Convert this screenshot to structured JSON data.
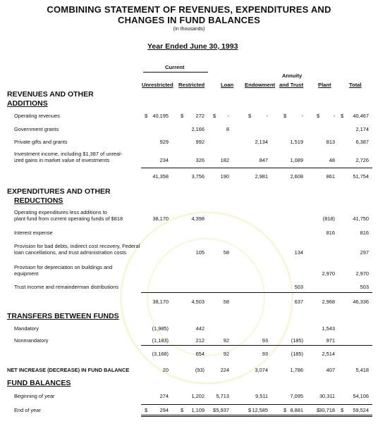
{
  "heading": {
    "title_line1": "COMBINING STATEMENT OF REVENUES, EXPENDITURES AND",
    "title_line2": "CHANGES IN FUND BALANCES",
    "units": "(In thousands)",
    "period": "Year Ended June 30, 1993"
  },
  "columns": {
    "current_group": "Current",
    "annuity_top": "Annuity",
    "unrestricted": "Unrestricted",
    "restricted": "Restricted",
    "loan": "Loan",
    "endowment": "Endowment",
    "annuity_trust": "and Trust",
    "plant": "Plant",
    "total": "Total"
  },
  "currency": "$",
  "sections": {
    "revenues_l1": "REVENUES AND OTHER",
    "revenues_l2": "ADDITIONS",
    "expenditures_l1": "EXPENDITURES AND OTHER",
    "expenditures_l2": "REDUCTIONS",
    "transfers": "TRANSFERS BETWEEN FUNDS",
    "net_increase": "NET INCREASE (DECREASE) IN FUND BALANCE",
    "fund_balances": "FUND BALANCES"
  },
  "rows": [
    {
      "label": [
        "Operating revenues"
      ],
      "values": [
        "40,195",
        "272",
        "-",
        "-",
        "-",
        "-",
        "40,467"
      ],
      "dollar": true
    },
    {
      "label": [
        "Government grants"
      ],
      "values": [
        "",
        "2,166",
        "8",
        "",
        "",
        "",
        "2,174"
      ]
    },
    {
      "label": [
        "Private gifts and grants"
      ],
      "values": [
        "929",
        "992",
        "",
        "2,134",
        "1,519",
        "813",
        "6,387"
      ]
    },
    {
      "label": [
        "Investment income, including $1,387 of unreal-",
        "ized gains in market value of investments"
      ],
      "values": [
        "234",
        "326",
        "182",
        "847",
        "1,089",
        "48",
        "2,726"
      ]
    },
    {
      "label": [
        ""
      ],
      "values": [
        "41,358",
        "3,756",
        "190",
        "2,981",
        "2,608",
        "861",
        "51,754"
      ]
    },
    {
      "label": [
        "Operating expenditures less additions to",
        "plant fund from current operating funds of $818"
      ],
      "values": [
        "38,170",
        "4,398",
        "",
        "",
        "",
        "(818)",
        "41,750"
      ]
    },
    {
      "label": [
        "Interest expense"
      ],
      "values": [
        "",
        "",
        "",
        "",
        "",
        "816",
        "816"
      ]
    },
    {
      "label": [
        "Provision for bad debts, indirect cost recovery, Federal",
        "loan cancellations, and trust administration costs"
      ],
      "values": [
        "",
        "105",
        "58",
        "",
        "134",
        "",
        "297"
      ]
    },
    {
      "label": [
        "Provision for depreciation on buildings and",
        "equipment"
      ],
      "values": [
        "",
        "",
        "",
        "",
        "",
        "2,970",
        "2,970"
      ]
    },
    {
      "label": [
        "Trust income and remainderman distributions"
      ],
      "values": [
        "",
        "",
        "",
        "",
        "503",
        "",
        "503"
      ]
    },
    {
      "label": [
        ""
      ],
      "values": [
        "38,170",
        "4,503",
        "58",
        "",
        "637",
        "2,968",
        "46,336"
      ]
    },
    {
      "label": [
        "Mandatory"
      ],
      "values": [
        "(1,985)",
        "442",
        "",
        "",
        "",
        "1,543",
        ""
      ]
    },
    {
      "label": [
        "Nonmandatory"
      ],
      "values": [
        "(1,183)",
        "212",
        "92",
        "93",
        "(185)",
        "971",
        ""
      ]
    },
    {
      "label": [
        ""
      ],
      "values": [
        "(3,168)",
        "654",
        "92",
        "93",
        "(185)",
        "2,514",
        ""
      ]
    },
    {
      "label": [
        ""
      ],
      "values": [
        "20",
        "(93)",
        "224",
        "3,074",
        "1,786",
        "407",
        "5,418"
      ]
    },
    {
      "label": [
        "Beginning of year"
      ],
      "values": [
        "274",
        "1,202",
        "5,713",
        "9,511",
        "7,095",
        "30,311",
        "54,106"
      ]
    },
    {
      "label": [
        "End of year"
      ],
      "values": [
        "294",
        "1,109",
        "5,937",
        "12,585",
        "8,881",
        "30,718",
        "59,524"
      ],
      "dollar": true
    }
  ]
}
